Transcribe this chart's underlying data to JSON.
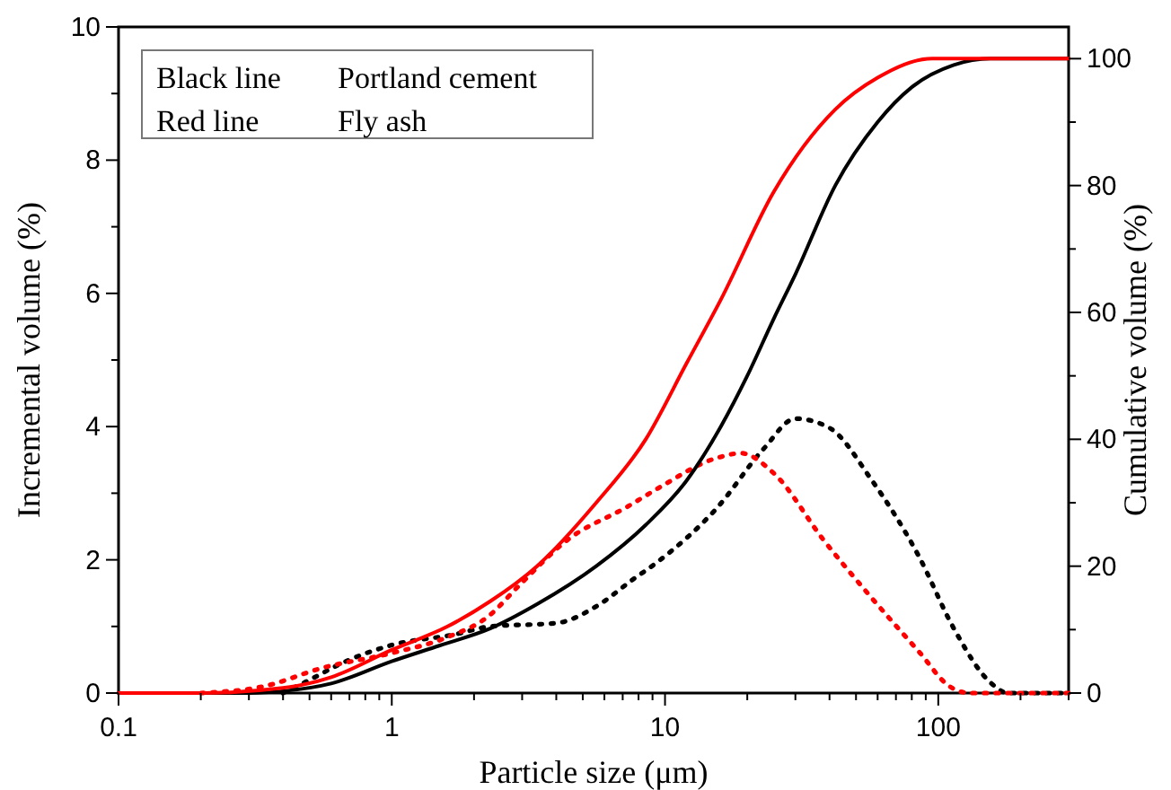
{
  "chart_data": {
    "type": "line",
    "xlabel": "Particle size (μm)",
    "ylabel": "Incremental volume (%)",
    "y2label": "Cumulative volume (%)",
    "log": "x",
    "grid": false,
    "marker": "none",
    "xlim": [
      0.1,
      300
    ],
    "xticks": [
      0.1,
      {
        "value": 0.2,
        "label": null
      },
      {
        "value": 0.3,
        "label": null
      },
      {
        "value": 0.4,
        "label": null
      },
      {
        "value": 0.5,
        "label": null
      },
      {
        "value": 0.6,
        "label": null
      },
      {
        "value": 0.7,
        "label": null
      },
      {
        "value": 0.8,
        "label": null
      },
      {
        "value": 0.9,
        "label": null
      },
      1,
      {
        "value": 2,
        "label": null
      },
      {
        "value": 3,
        "label": null
      },
      {
        "value": 4,
        "label": null
      },
      {
        "value": 5,
        "label": null
      },
      {
        "value": 6,
        "label": null
      },
      {
        "value": 7,
        "label": null
      },
      {
        "value": 8,
        "label": null
      },
      {
        "value": 9,
        "label": null
      },
      10,
      {
        "value": 20,
        "label": null
      },
      {
        "value": 30,
        "label": null
      },
      {
        "value": 40,
        "label": null
      },
      {
        "value": 50,
        "label": null
      },
      {
        "value": 60,
        "label": null
      },
      {
        "value": 70,
        "label": null
      },
      {
        "value": 80,
        "label": null
      },
      {
        "value": 90,
        "label": null
      },
      100,
      {
        "value": 200,
        "label": null
      },
      {
        "value": 300,
        "label": null
      }
    ],
    "ylim": [
      0,
      10
    ],
    "yticks": [
      0,
      {
        "value": 1,
        "label": null
      },
      2,
      {
        "value": 3,
        "label": null
      },
      4,
      {
        "value": 5,
        "label": null
      },
      6,
      {
        "value": 7,
        "label": null
      },
      8,
      {
        "value": 9,
        "label": null
      },
      10
    ],
    "y2lim": [
      0,
      105
    ],
    "y2ticks": [
      0,
      {
        "value": 10,
        "label": null
      },
      20,
      {
        "value": 30,
        "label": null
      },
      40,
      {
        "value": 50,
        "label": null
      },
      60,
      {
        "value": 70,
        "label": null
      },
      80,
      {
        "value": 90,
        "label": null
      },
      100
    ],
    "annotations": [
      "Black line",
      "Portland cement",
      "Red line",
      "Fly ash"
    ],
    "series": [
      {
        "color": "#000000",
        "axis": "y",
        "line_style": "dotted",
        "x": [
          0.4,
          0.48,
          0.7,
          1,
          1.7,
          2.3,
          4,
          5.6,
          7.6,
          9.4,
          15.5,
          23,
          30,
          40,
          57,
          85,
          114,
          155,
          180,
          300
        ],
        "values": [
          0,
          0.16,
          0.5,
          0.72,
          0.88,
          1.0,
          1.05,
          1.3,
          1.7,
          1.97,
          2.78,
          3.67,
          4.12,
          3.98,
          3.2,
          2.05,
          0.97,
          0.16,
          0,
          0
        ]
      },
      {
        "color": "#ff0000",
        "axis": "y",
        "line_style": "dotted",
        "x": [
          0.2,
          0.34,
          0.56,
          1,
          1.6,
          2.27,
          2.9,
          4.4,
          7.3,
          9.4,
          15.5,
          19,
          25,
          38,
          57,
          85,
          110,
          130,
          300
        ],
        "values": [
          0,
          0.1,
          0.38,
          0.6,
          0.84,
          1.16,
          1.6,
          2.3,
          2.8,
          3.07,
          3.53,
          3.6,
          3.3,
          2.3,
          1.43,
          0.62,
          0.1,
          0,
          0
        ]
      },
      {
        "color": "#000000",
        "axis": "y2",
        "line_style": "solid",
        "x": [
          0.1,
          0.3,
          0.4,
          0.6,
          1,
          1.5,
          2.3,
          3.4,
          5.6,
          8.5,
          12,
          16,
          20,
          25,
          30,
          42,
          60,
          80,
          114,
          155,
          300
        ],
        "values": [
          0,
          0,
          0.3,
          1.5,
          5,
          7.5,
          10.2,
          14,
          20,
          26.5,
          33.5,
          42,
          50,
          59,
          66,
          80,
          90,
          95.5,
          99,
          100,
          100
        ]
      },
      {
        "color": "#ff0000",
        "axis": "y2",
        "line_style": "solid",
        "x": [
          0.1,
          0.2,
          0.4,
          0.6,
          1,
          1.6,
          2.3,
          3.4,
          5.6,
          8.5,
          12,
          16,
          25,
          42,
          60,
          95,
          300
        ],
        "values": [
          0,
          0,
          0.8,
          2.5,
          6.8,
          10.5,
          14.5,
          20,
          30,
          40,
          52,
          62,
          79,
          92,
          97,
          100,
          100
        ]
      }
    ]
  }
}
